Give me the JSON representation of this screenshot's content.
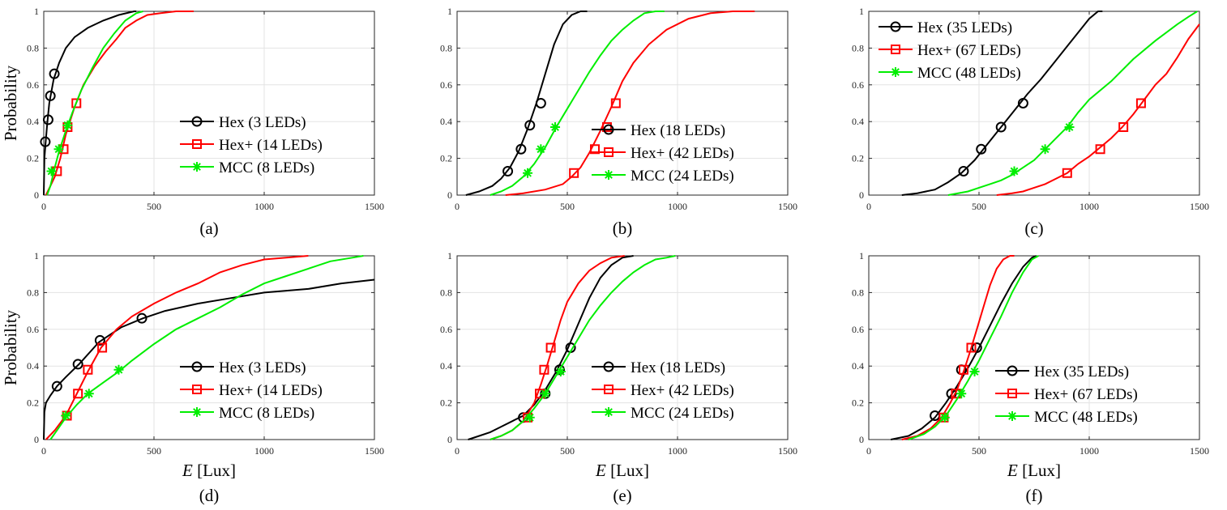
{
  "chart_data": [
    {
      "type": "line",
      "panel_label": "(a)",
      "title": "",
      "xlabel": "",
      "ylabel": "Probability",
      "xlim": [
        0,
        1500
      ],
      "ylim": [
        0,
        1
      ],
      "xticks": [
        "0",
        "500",
        "1000",
        "1500"
      ],
      "yticks": [
        "0",
        "0.2",
        "0.4",
        "0.6",
        "0.8",
        "1"
      ],
      "legend_position": "bottom-right",
      "series": [
        {
          "name": "Hex (3 LEDs)",
          "color": "#000000",
          "marker": "circle",
          "x": [
            0,
            3,
            8,
            15,
            25,
            45,
            70,
            100,
            140,
            200,
            270,
            340,
            410,
            420
          ],
          "y": [
            0,
            0.2,
            0.28,
            0.38,
            0.5,
            0.63,
            0.72,
            0.8,
            0.86,
            0.91,
            0.95,
            0.98,
            1.0,
            1.0
          ],
          "markers_x": [
            7,
            20,
            30,
            48
          ],
          "markers_y": [
            0.29,
            0.41,
            0.54,
            0.66
          ]
        },
        {
          "name": "Hex+ (14 LEDs)",
          "color": "#ff0000",
          "marker": "square",
          "x": [
            10,
            30,
            50,
            75,
            100,
            140,
            180,
            230,
            280,
            330,
            370,
            420,
            470,
            530,
            600,
            680
          ],
          "y": [
            0,
            0.05,
            0.1,
            0.2,
            0.33,
            0.48,
            0.6,
            0.7,
            0.78,
            0.85,
            0.91,
            0.95,
            0.98,
            0.99,
            1.0,
            1.0
          ],
          "markers_x": [
            60,
            90,
            108,
            148
          ],
          "markers_y": [
            0.13,
            0.25,
            0.37,
            0.5
          ]
        },
        {
          "name": "MCC (8 LEDs)",
          "color": "#00ee00",
          "marker": "asterisk",
          "x": [
            15,
            30,
            50,
            70,
            100,
            130,
            170,
            220,
            270,
            320,
            370,
            420,
            450
          ],
          "y": [
            0,
            0.05,
            0.15,
            0.24,
            0.35,
            0.45,
            0.57,
            0.69,
            0.8,
            0.88,
            0.95,
            0.99,
            1.0
          ],
          "markers_x": [
            35,
            68,
            108
          ],
          "markers_y": [
            0.13,
            0.25,
            0.38
          ]
        }
      ]
    },
    {
      "type": "line",
      "panel_label": "(b)",
      "title": "",
      "xlabel": "",
      "ylabel": "",
      "xlim": [
        0,
        1500
      ],
      "ylim": [
        0,
        1
      ],
      "xticks": [
        "0",
        "500",
        "1000",
        "1500"
      ],
      "yticks": [
        "0",
        "0.2",
        "0.4",
        "0.6",
        "0.8",
        "1"
      ],
      "legend_position": "bottom-right",
      "series": [
        {
          "name": "Hex (18 LEDs)",
          "color": "#000000",
          "marker": "circle",
          "x": [
            40,
            100,
            160,
            200,
            240,
            280,
            320,
            360,
            400,
            440,
            480,
            520,
            560,
            590
          ],
          "y": [
            0,
            0.02,
            0.05,
            0.09,
            0.15,
            0.24,
            0.36,
            0.5,
            0.66,
            0.82,
            0.93,
            0.98,
            1.0,
            1.0
          ],
          "markers_x": [
            230,
            290,
            330,
            380
          ],
          "markers_y": [
            0.13,
            0.25,
            0.38,
            0.5
          ]
        },
        {
          "name": "Hex+ (42 LEDs)",
          "color": "#ff0000",
          "marker": "square",
          "x": [
            220,
            300,
            400,
            480,
            520,
            560,
            600,
            650,
            700,
            750,
            800,
            870,
            950,
            1050,
            1150,
            1250,
            1350
          ],
          "y": [
            0,
            0.01,
            0.03,
            0.06,
            0.1,
            0.15,
            0.23,
            0.35,
            0.48,
            0.62,
            0.72,
            0.82,
            0.9,
            0.96,
            0.99,
            1.0,
            1.0
          ],
          "markers_x": [
            530,
            625,
            680,
            720
          ],
          "markers_y": [
            0.12,
            0.25,
            0.37,
            0.5
          ]
        },
        {
          "name": "MCC (24 LEDs)",
          "color": "#00ee00",
          "marker": "asterisk",
          "x": [
            150,
            200,
            250,
            300,
            350,
            400,
            450,
            500,
            550,
            600,
            650,
            700,
            750,
            800,
            850,
            900,
            940
          ],
          "y": [
            0,
            0.02,
            0.05,
            0.1,
            0.17,
            0.26,
            0.37,
            0.47,
            0.57,
            0.67,
            0.76,
            0.84,
            0.9,
            0.95,
            0.99,
            1.0,
            1.0
          ],
          "markers_x": [
            320,
            380,
            445
          ],
          "markers_y": [
            0.12,
            0.25,
            0.37
          ]
        }
      ]
    },
    {
      "type": "line",
      "panel_label": "(c)",
      "title": "",
      "xlabel": "",
      "ylabel": "",
      "xlim": [
        0,
        1500
      ],
      "ylim": [
        0,
        1
      ],
      "xticks": [
        "0",
        "500",
        "1000",
        "1500"
      ],
      "yticks": [
        "0",
        "0.2",
        "0.4",
        "0.6",
        "0.8",
        "1"
      ],
      "legend_position": "top-left",
      "series": [
        {
          "name": "Hex (35 LEDs)",
          "color": "#000000",
          "marker": "circle",
          "x": [
            150,
            220,
            300,
            360,
            420,
            480,
            540,
            600,
            660,
            720,
            780,
            840,
            900,
            960,
            1000,
            1040,
            1060
          ],
          "y": [
            0,
            0.01,
            0.03,
            0.07,
            0.12,
            0.19,
            0.28,
            0.37,
            0.46,
            0.55,
            0.63,
            0.72,
            0.81,
            0.9,
            0.96,
            1.0,
            1.0
          ],
          "markers_x": [
            430,
            510,
            600,
            700
          ],
          "markers_y": [
            0.13,
            0.25,
            0.37,
            0.5
          ]
        },
        {
          "name": "Hex+ (67 LEDs)",
          "color": "#ff0000",
          "marker": "square",
          "x": [
            580,
            650,
            700,
            750,
            800,
            850,
            900,
            950,
            1000,
            1050,
            1100,
            1150,
            1200,
            1250,
            1300,
            1350,
            1400,
            1450,
            1500
          ],
          "y": [
            0,
            0.01,
            0.02,
            0.04,
            0.06,
            0.09,
            0.12,
            0.17,
            0.21,
            0.26,
            0.31,
            0.37,
            0.44,
            0.52,
            0.6,
            0.66,
            0.75,
            0.85,
            0.93
          ],
          "markers_x": [
            900,
            1050,
            1155,
            1235
          ],
          "markers_y": [
            0.12,
            0.25,
            0.37,
            0.5
          ]
        },
        {
          "name": "MCC (48 LEDs)",
          "color": "#00ee00",
          "marker": "asterisk",
          "x": [
            360,
            450,
            500,
            550,
            600,
            650,
            700,
            750,
            800,
            850,
            900,
            950,
            1000,
            1100,
            1200,
            1300,
            1400,
            1450,
            1490
          ],
          "y": [
            0,
            0.02,
            0.04,
            0.06,
            0.08,
            0.11,
            0.15,
            0.19,
            0.25,
            0.31,
            0.37,
            0.45,
            0.52,
            0.62,
            0.74,
            0.84,
            0.93,
            0.97,
            1.0
          ],
          "markers_x": [
            660,
            800,
            910
          ],
          "markers_y": [
            0.13,
            0.25,
            0.37
          ]
        }
      ]
    },
    {
      "type": "line",
      "panel_label": "(d)",
      "title": "",
      "xlabel": "E [Lux]",
      "ylabel": "Probability",
      "xlim": [
        0,
        1500
      ],
      "ylim": [
        0,
        1
      ],
      "xticks": [
        "0",
        "500",
        "1000",
        "1500"
      ],
      "yticks": [
        "0",
        "0.2",
        "0.4",
        "0.6",
        "0.8",
        "1"
      ],
      "legend_position": "bottom-right",
      "series": [
        {
          "name": "Hex (3 LEDs)",
          "color": "#000000",
          "marker": "circle",
          "x": [
            0,
            3,
            10,
            30,
            60,
            100,
            160,
            250,
            350,
            450,
            550,
            700,
            850,
            1000,
            1200,
            1350,
            1500
          ],
          "y": [
            0,
            0.15,
            0.2,
            0.24,
            0.29,
            0.34,
            0.41,
            0.53,
            0.61,
            0.66,
            0.7,
            0.74,
            0.77,
            0.8,
            0.82,
            0.85,
            0.87
          ],
          "markers_x": [
            60,
            155,
            255,
            445
          ],
          "markers_y": [
            0.29,
            0.41,
            0.54,
            0.66
          ]
        },
        {
          "name": "Hex+ (14 LEDs)",
          "color": "#ff0000",
          "marker": "square",
          "x": [
            10,
            50,
            100,
            150,
            200,
            260,
            330,
            400,
            500,
            600,
            700,
            800,
            900,
            1000,
            1100,
            1200
          ],
          "y": [
            0,
            0.05,
            0.13,
            0.25,
            0.37,
            0.5,
            0.6,
            0.67,
            0.74,
            0.8,
            0.85,
            0.91,
            0.95,
            0.98,
            0.99,
            1.0
          ],
          "markers_x": [
            105,
            155,
            200,
            265
          ],
          "markers_y": [
            0.13,
            0.25,
            0.38,
            0.5
          ]
        },
        {
          "name": "MCC (8 LEDs)",
          "color": "#00ee00",
          "marker": "asterisk",
          "x": [
            30,
            60,
            100,
            150,
            200,
            270,
            340,
            400,
            500,
            600,
            700,
            800,
            900,
            1000,
            1100,
            1200,
            1300,
            1400,
            1450
          ],
          "y": [
            0,
            0.05,
            0.12,
            0.19,
            0.25,
            0.31,
            0.37,
            0.43,
            0.52,
            0.6,
            0.66,
            0.72,
            0.79,
            0.85,
            0.89,
            0.93,
            0.97,
            0.99,
            1.0
          ],
          "markers_x": [
            100,
            205,
            340
          ],
          "markers_y": [
            0.13,
            0.25,
            0.38
          ]
        }
      ]
    },
    {
      "type": "line",
      "panel_label": "(e)",
      "title": "",
      "xlabel": "E [Lux]",
      "ylabel": "",
      "xlim": [
        0,
        1500
      ],
      "ylim": [
        0,
        1
      ],
      "xticks": [
        "0",
        "500",
        "1000",
        "1500"
      ],
      "yticks": [
        "0",
        "0.2",
        "0.4",
        "0.6",
        "0.8",
        "1"
      ],
      "legend_position": "bottom-right",
      "series": [
        {
          "name": "Hex (18 LEDs)",
          "color": "#000000",
          "marker": "circle",
          "x": [
            50,
            100,
            150,
            200,
            250,
            300,
            350,
            400,
            450,
            500,
            550,
            600,
            650,
            700,
            750,
            800
          ],
          "y": [
            0,
            0.02,
            0.04,
            0.07,
            0.1,
            0.13,
            0.19,
            0.27,
            0.37,
            0.49,
            0.63,
            0.77,
            0.88,
            0.95,
            0.99,
            1.0
          ],
          "markers_x": [
            300,
            400,
            465,
            515
          ],
          "markers_y": [
            0.12,
            0.25,
            0.38,
            0.5
          ]
        },
        {
          "name": "Hex+ (42 LEDs)",
          "color": "#ff0000",
          "marker": "square",
          "x": [
            150,
            200,
            250,
            300,
            350,
            380,
            410,
            440,
            470,
            500,
            550,
            600,
            650,
            700,
            760
          ],
          "y": [
            0,
            0.02,
            0.05,
            0.1,
            0.2,
            0.3,
            0.41,
            0.53,
            0.65,
            0.75,
            0.85,
            0.92,
            0.96,
            0.99,
            1.0
          ],
          "markers_x": [
            320,
            375,
            395,
            425
          ],
          "markers_y": [
            0.12,
            0.25,
            0.38,
            0.5
          ]
        },
        {
          "name": "MCC (24 LEDs)",
          "color": "#00ee00",
          "marker": "asterisk",
          "x": [
            150,
            200,
            250,
            300,
            350,
            400,
            450,
            500,
            550,
            600,
            650,
            700,
            750,
            800,
            850,
            900,
            950,
            990
          ],
          "y": [
            0,
            0.02,
            0.05,
            0.1,
            0.17,
            0.25,
            0.35,
            0.45,
            0.55,
            0.65,
            0.73,
            0.8,
            0.86,
            0.91,
            0.95,
            0.98,
            0.99,
            1.0
          ],
          "markers_x": [
            330,
            400,
            470
          ],
          "markers_y": [
            0.12,
            0.25,
            0.37
          ]
        }
      ]
    },
    {
      "type": "line",
      "panel_label": "(f)",
      "title": "",
      "xlabel": "E [Lux]",
      "ylabel": "",
      "xlim": [
        0,
        1500
      ],
      "ylim": [
        0,
        1
      ],
      "xticks": [
        "0",
        "500",
        "1000",
        "1500"
      ],
      "yticks": [
        "0",
        "0.2",
        "0.4",
        "0.6",
        "0.8",
        "1"
      ],
      "legend_position": "bottom-right",
      "series": [
        {
          "name": "Hex (35 LEDs)",
          "color": "#000000",
          "marker": "circle",
          "x": [
            100,
            180,
            240,
            300,
            350,
            400,
            450,
            500,
            550,
            600,
            650,
            700,
            740,
            760
          ],
          "y": [
            0,
            0.02,
            0.06,
            0.12,
            0.2,
            0.29,
            0.39,
            0.5,
            0.62,
            0.74,
            0.85,
            0.94,
            0.99,
            1.0
          ],
          "markers_x": [
            300,
            375,
            420,
            490
          ],
          "markers_y": [
            0.13,
            0.25,
            0.38,
            0.5
          ]
        },
        {
          "name": "Hex+ (67 LEDs)",
          "color": "#ff0000",
          "marker": "square",
          "x": [
            150,
            220,
            280,
            330,
            370,
            400,
            430,
            460,
            490,
            520,
            550,
            580,
            610,
            640,
            660
          ],
          "y": [
            0,
            0.02,
            0.06,
            0.12,
            0.2,
            0.27,
            0.37,
            0.48,
            0.6,
            0.72,
            0.84,
            0.93,
            0.98,
            1.0,
            1.0
          ],
          "markers_x": [
            340,
            395,
            430,
            465
          ],
          "markers_y": [
            0.12,
            0.25,
            0.38,
            0.5
          ]
        },
        {
          "name": "MCC (48 LEDs)",
          "color": "#00ee00",
          "marker": "asterisk",
          "x": [
            180,
            250,
            300,
            350,
            400,
            450,
            500,
            550,
            600,
            650,
            700,
            740,
            770
          ],
          "y": [
            0,
            0.03,
            0.07,
            0.13,
            0.22,
            0.32,
            0.43,
            0.55,
            0.67,
            0.8,
            0.91,
            0.98,
            1.0
          ],
          "markers_x": [
            345,
            420,
            480
          ],
          "markers_y": [
            0.12,
            0.25,
            0.37
          ]
        }
      ]
    }
  ]
}
